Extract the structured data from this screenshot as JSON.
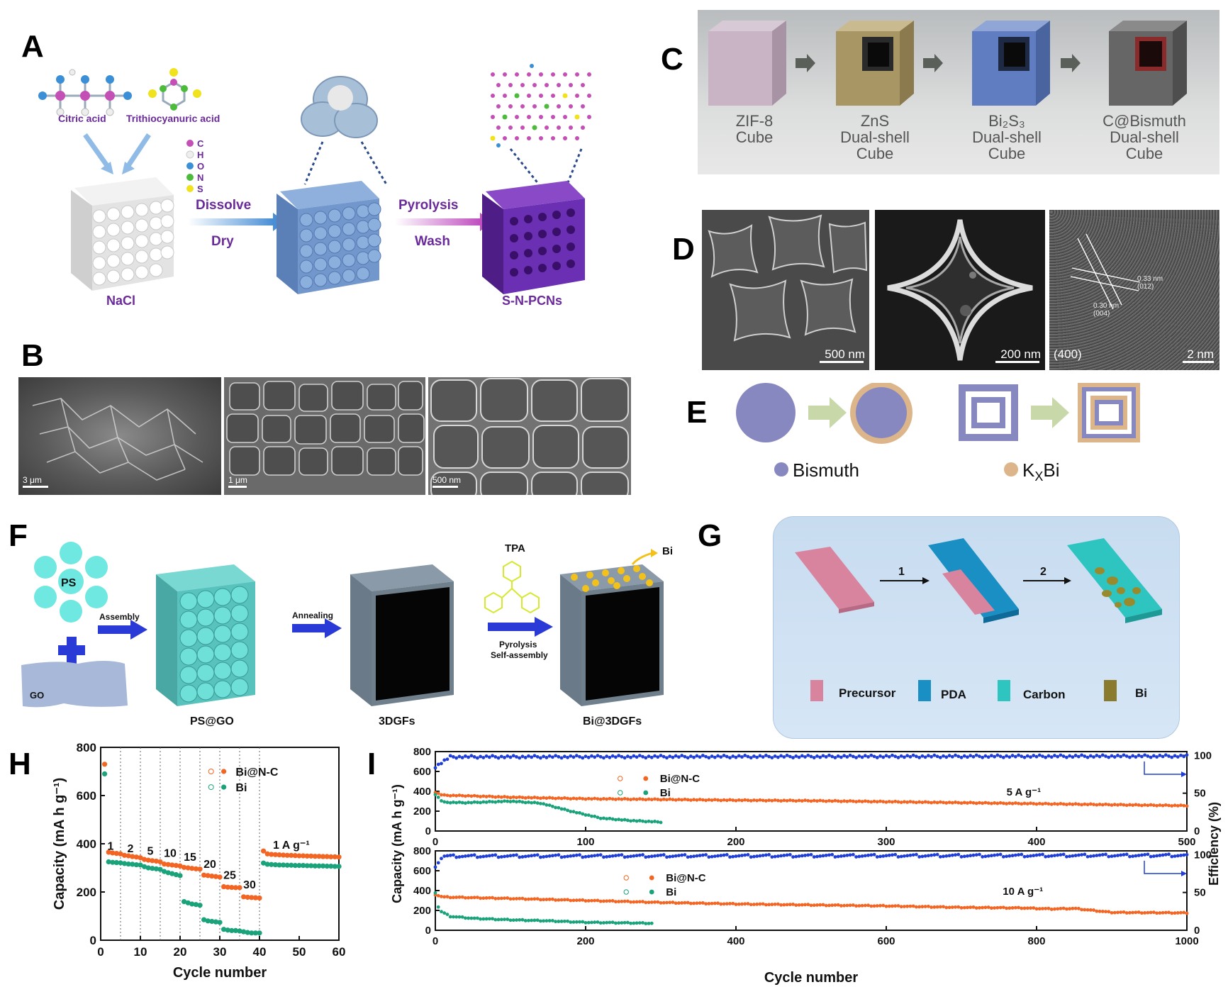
{
  "panel_labels": [
    "A",
    "B",
    "C",
    "D",
    "E",
    "F",
    "G",
    "H",
    "I"
  ],
  "panel_a": {
    "molecule_1": "Citric acid",
    "molecule_2": "Trithiocyanuric acid",
    "elements": [
      "C",
      "H",
      "O",
      "N",
      "S"
    ],
    "element_colors": [
      "#c44fb5",
      "#eeeeee",
      "#3a8fd6",
      "#4cbb3b",
      "#f0e21c"
    ],
    "step_1_top": "Dissolve",
    "step_1_bottom": "Dry",
    "step_2_top": "Pyrolysis",
    "step_2_bottom": "Wash",
    "template_label": "NaCl",
    "product_label": "S-N-PCNs"
  },
  "panel_b": {
    "scale_bars": [
      "3 μm",
      "1 μm",
      "500 nm"
    ]
  },
  "panel_c": {
    "stages": [
      {
        "lines": [
          "ZIF-8",
          "Cube"
        ]
      },
      {
        "lines": [
          "ZnS",
          "Dual-shell",
          "Cube"
        ]
      },
      {
        "lines": [
          "Bi₂S₃",
          "Dual-shell",
          "Cube"
        ]
      },
      {
        "lines": [
          "C@Bismuth",
          "Dual-shell",
          "Cube"
        ]
      }
    ]
  },
  "panel_d": {
    "scale_bars": [
      "500 nm",
      "200 nm",
      "2 nm"
    ],
    "inset_hkl": "(400)",
    "d_spacings": [
      "0.33 nm",
      "(012)",
      "0.30 nm",
      "(004)"
    ]
  },
  "panel_e": {
    "legend_1": "Bismuth",
    "legend_2_main": "K",
    "legend_2_sub": "X",
    "legend_2_end": "Bi",
    "bismuth_color": "#8888c0",
    "kxbi_color": "#dcb68a"
  },
  "panel_f": {
    "ps": "PS",
    "go": "GO",
    "step_1": "Assembly",
    "step_2": "Annealing",
    "tpa": "TPA",
    "step_3_line1": "Pyrolysis",
    "step_3_line2": "Self-assembly",
    "bi": "Bi",
    "stage_1": "PS@GO",
    "stage_2": "3DGFs",
    "stage_3": "Bi@3DGFs"
  },
  "panel_g": {
    "step_1": "1",
    "step_2": "2",
    "legend": [
      "Precursor",
      "PDA",
      "Carbon",
      "Bi"
    ],
    "legend_colors": [
      "#d9849f",
      "#1a8fc4",
      "#2ec4c0",
      "#8a7a2e"
    ]
  },
  "chart_data": [
    {
      "type": "scatter",
      "panel": "H",
      "xlabel": "Cycle number",
      "ylabel": "Capacity (mA h g⁻¹)",
      "xlim": [
        0,
        60
      ],
      "ylim": [
        0,
        800
      ],
      "xticks": [
        0,
        10,
        20,
        30,
        40,
        50,
        60
      ],
      "yticks": [
        0,
        200,
        400,
        600,
        800
      ],
      "rate_labels": [
        "1",
        "2",
        "5",
        "10",
        "15",
        "20",
        "25",
        "30",
        "1 A g⁻¹"
      ],
      "legend": [
        "Bi@N-C",
        "Bi"
      ],
      "series": [
        {
          "name": "Bi@N-C",
          "color": "#f26522",
          "x": [
            1,
            2,
            3,
            4,
            5,
            6,
            7,
            8,
            9,
            10,
            11,
            12,
            13,
            14,
            15,
            16,
            17,
            18,
            19,
            20,
            21,
            22,
            23,
            24,
            25,
            26,
            27,
            28,
            29,
            30,
            31,
            32,
            33,
            34,
            35,
            36,
            37,
            38,
            39,
            40,
            41,
            42,
            43,
            44,
            45,
            46,
            47,
            48,
            49,
            50,
            51,
            52,
            53,
            54,
            55,
            56,
            57,
            58,
            59,
            60
          ],
          "y": [
            730,
            365,
            362,
            360,
            358,
            352,
            350,
            347,
            345,
            342,
            335,
            332,
            330,
            328,
            325,
            316,
            314,
            312,
            310,
            308,
            302,
            300,
            298,
            296,
            295,
            270,
            268,
            266,
            264,
            262,
            222,
            220,
            219,
            218,
            218,
            180,
            178,
            177,
            176,
            175,
            370,
            358,
            356,
            355,
            354,
            353,
            352,
            352,
            351,
            350,
            350,
            349,
            349,
            348,
            348,
            347,
            347,
            346,
            346,
            345
          ]
        },
        {
          "name": "Bi",
          "color": "#1aa37a",
          "x": [
            1,
            2,
            3,
            4,
            5,
            6,
            7,
            8,
            9,
            10,
            11,
            12,
            13,
            14,
            15,
            16,
            17,
            18,
            19,
            20,
            21,
            22,
            23,
            24,
            25,
            26,
            27,
            28,
            29,
            30,
            31,
            32,
            33,
            34,
            35,
            36,
            37,
            38,
            39,
            40,
            41,
            42,
            43,
            44,
            45,
            46,
            47,
            48,
            49,
            50,
            51,
            52,
            53,
            54,
            55,
            56,
            57,
            58,
            59,
            60
          ],
          "y": [
            690,
            325,
            323,
            322,
            321,
            318,
            316,
            315,
            313,
            312,
            305,
            300,
            298,
            296,
            294,
            285,
            280,
            276,
            272,
            268,
            160,
            155,
            150,
            148,
            145,
            85,
            80,
            78,
            76,
            74,
            45,
            42,
            40,
            40,
            38,
            35,
            32,
            30,
            30,
            30,
            320,
            315,
            314,
            313,
            312,
            312,
            311,
            311,
            310,
            310,
            310,
            309,
            309,
            308,
            308,
            308,
            307,
            307,
            306,
            306
          ]
        }
      ]
    },
    {
      "type": "scatter",
      "panel": "I-top",
      "ylabel": "Capacity (mA h g⁻¹)",
      "y2label": "Efficiency (%)",
      "xlim": [
        0,
        500
      ],
      "ylim": [
        0,
        800
      ],
      "y2lim": [
        0,
        105
      ],
      "xticks": [
        0,
        100,
        200,
        300,
        400,
        500
      ],
      "yticks": [
        0,
        200,
        400,
        600,
        800
      ],
      "y2ticks": [
        0,
        50,
        100
      ],
      "annotation": "5 A g⁻¹",
      "legend": [
        "Bi@N-C",
        "Bi"
      ],
      "series": [
        {
          "name": "Bi@N-C",
          "color": "#f26522",
          "x": [
            0,
            5,
            20,
            50,
            100,
            150,
            200,
            250,
            300,
            350,
            400,
            450,
            500
          ],
          "y": [
            390,
            360,
            355,
            340,
            325,
            318,
            310,
            305,
            295,
            285,
            275,
            265,
            255
          ]
        },
        {
          "name": "Bi",
          "color": "#1aa37a",
          "x": [
            0,
            5,
            20,
            50,
            70,
            90,
            110,
            130,
            150
          ],
          "y": [
            370,
            290,
            285,
            300,
            280,
            200,
            130,
            105,
            90
          ]
        },
        {
          "name": "Efficiency",
          "color": "#1f3ed6",
          "axis": "y2",
          "x": [
            0,
            10,
            500
          ],
          "y": [
            85,
            98,
            99
          ]
        }
      ]
    },
    {
      "type": "scatter",
      "panel": "I-bottom",
      "xlabel": "Cycle number",
      "ylabel": "Capacity (mA h g⁻¹)",
      "y2label": "Efficiency (%)",
      "xlim": [
        0,
        1000
      ],
      "ylim": [
        0,
        800
      ],
      "y2lim": [
        0,
        105
      ],
      "xticks": [
        0,
        200,
        400,
        600,
        800,
        1000
      ],
      "yticks": [
        0,
        200,
        400,
        600,
        800
      ],
      "y2ticks": [
        0,
        50,
        100
      ],
      "annotation": "10 A g⁻¹",
      "legend": [
        "Bi@N-C",
        "Bi"
      ],
      "series": [
        {
          "name": "Bi@N-C",
          "color": "#f26522",
          "x": [
            0,
            10,
            100,
            200,
            300,
            400,
            500,
            600,
            700,
            780,
            820,
            850,
            900,
            1000
          ],
          "y": [
            360,
            335,
            320,
            300,
            280,
            265,
            255,
            245,
            230,
            225,
            215,
            220,
            180,
            175
          ]
        },
        {
          "name": "Bi",
          "color": "#1aa37a",
          "x": [
            0,
            5,
            20,
            50,
            100,
            150,
            200,
            250,
            290
          ],
          "y": [
            380,
            200,
            140,
            120,
            105,
            95,
            80,
            75,
            70
          ]
        },
        {
          "name": "Efficiency",
          "color": "#1f3ed6",
          "axis": "y2",
          "x": [
            0,
            10,
            1000
          ],
          "y": [
            85,
            98,
            99
          ]
        }
      ]
    }
  ]
}
